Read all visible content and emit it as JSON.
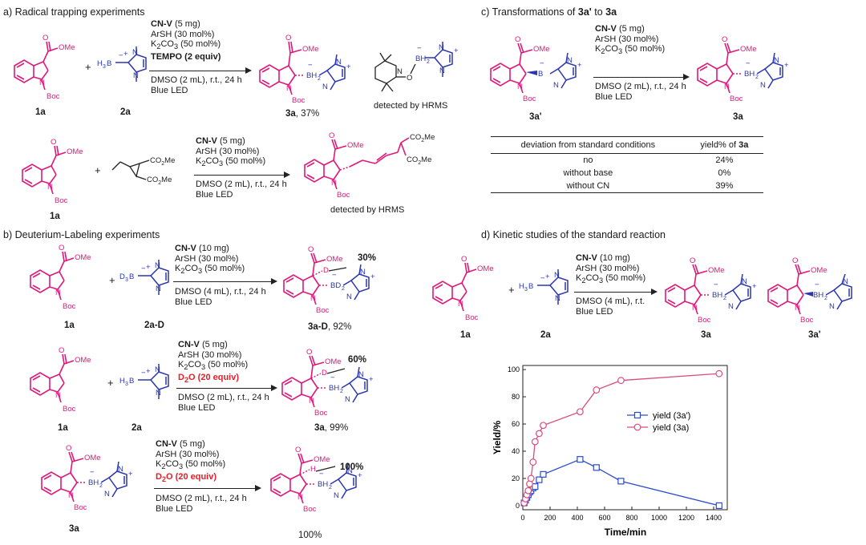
{
  "section_a": {
    "title": "a) Radical trapping experiments",
    "exp1": {
      "cond": [
        "CN-V",
        " (5 mg)",
        "ArSH (30 mol%)",
        "K",
        "2",
        "CO",
        "3",
        " (50 mol%)",
        "TEMPO (2 equiv)",
        "DMSO (2 mL), r.t., 24 h",
        "Blue LED"
      ],
      "sm1": "1a",
      "sm2": "2a",
      "product": "3a",
      "product_yield": ", 37%",
      "adduct_note": "detected by HRMS"
    },
    "exp2": {
      "cond": [
        "CN-V",
        " (5 mg)",
        "ArSH (30 mol%)",
        "K",
        "2",
        "CO",
        "3",
        " (50 mol%)",
        "DMSO (2 mL), r.t., 24 h",
        "Blue LED"
      ],
      "sm1": "1a",
      "product_note": "detected by HRMS",
      "ester_top": "CO",
      "ester_top_sub": "2",
      "ester_top_me": "Me"
    }
  },
  "section_b": {
    "title": "b) Deuterium-Labeling experiments",
    "exp1": {
      "cond": [
        "CN-V",
        " (10 mg)",
        "ArSH (30 mol%)",
        "K",
        "2",
        "CO",
        "3",
        " (50 mol%)",
        "DMSO (4 mL), r.t., 24 h",
        "Blue LED"
      ],
      "sm1": "1a",
      "sm2": "2a-D",
      "product": "3a-D",
      "product_yield": ", 92%",
      "d_pct": "30%"
    },
    "exp2": {
      "cond": [
        "CN-V",
        " (5 mg)",
        "ArSH (30 mol%)",
        "K",
        "2",
        "CO",
        "3",
        " (50 mol%)",
        "D",
        "2",
        "O (20 equiv)",
        "DMSO (2 mL), r.t., 24 h",
        "Blue LED"
      ],
      "sm1": "1a",
      "sm2": "2a",
      "product": "3a",
      "product_yield": ", 99%",
      "d_pct": "60%"
    },
    "exp3": {
      "cond": [
        "CN-V",
        " (5 mg)",
        "ArSH (30 mol%)",
        "K",
        "2",
        "CO",
        "3",
        " (50 mol%)",
        "D",
        "2",
        "O (20 equiv)",
        "DMSO (2 mL), r.t., 24 h",
        "Blue LED"
      ],
      "sm1": "3a",
      "product_yield": "100%",
      "d_pct": "100%"
    }
  },
  "section_c": {
    "title_pre": "c) Transformations of ",
    "title_b1": "3a'",
    "title_mid": " to ",
    "title_b2": "3a",
    "cond": [
      "CN-V",
      " (5 mg)",
      "ArSH (30 mol%)",
      "K",
      "2",
      "CO",
      "3",
      " (50 mol%)",
      "DMSO (2 mL), r.t., 24 h",
      "Blue LED"
    ],
    "sm": "3a'",
    "product": "3a",
    "table": {
      "col1": "deviation from standard conditions",
      "col2_pre": "yield% of ",
      "col2_b": "3a",
      "rows": [
        {
          "dev": "no",
          "yield": "24%"
        },
        {
          "dev": "without base",
          "yield": "0%"
        },
        {
          "dev": "without CN",
          "yield": "39%"
        }
      ]
    }
  },
  "section_d": {
    "title": "d) Kinetic studies of the standard reaction",
    "cond": [
      "CN-V",
      " (10 mg)",
      "ArSH (30 mol%)",
      "K",
      "2",
      "CO",
      "3",
      " (50 mol%)",
      "DMSO (4 mL), r.t.",
      "Blue LED"
    ],
    "sm1": "1a",
    "sm2": "2a",
    "product1": "3a",
    "product2": "3a'"
  },
  "atoms": {
    "ome": "OMe",
    "o": "O",
    "n": "N",
    "boc": "Boc",
    "bh2": "BH",
    "bh2_sub": "2",
    "h3b": "H",
    "h3b_sub": "3",
    "h3b_b": "B",
    "d3b": "D",
    "d3b_sub": "3",
    "d3b_b": "B",
    "bd2": "BD",
    "bd2_sub": "2",
    "plus": "+",
    "minus": "−",
    "d": "D",
    "h": "H",
    "b": "B"
  },
  "colors": {
    "indoline": "#e0197a",
    "nhc": "#2b36b0",
    "red_text": "#e0202a",
    "series_3a": "#d94c7f",
    "series_3a_prime": "#2b4bd0"
  },
  "chart_data": {
    "type": "line",
    "xlabel": "Time/min",
    "ylabel": "Yield/%",
    "xlim": [
      0,
      1500
    ],
    "ylim": [
      -3,
      103
    ],
    "xticks": [
      0,
      200,
      400,
      600,
      800,
      1000,
      1200,
      1400
    ],
    "yticks": [
      0,
      20,
      40,
      60,
      80,
      100
    ],
    "grid": false,
    "legend": "center-right",
    "series": [
      {
        "name": "yield (3a')",
        "marker": "square",
        "color": "#2b4bd0",
        "x": [
          10,
          20,
          30,
          40,
          50,
          60,
          75,
          90,
          120,
          150,
          420,
          540,
          720,
          1440
        ],
        "y": [
          2,
          4,
          6,
          8,
          10,
          11,
          13,
          14,
          19,
          23,
          34,
          28,
          18,
          0
        ]
      },
      {
        "name": "yield (3a)",
        "marker": "circle",
        "color": "#d94c7f",
        "x": [
          10,
          20,
          30,
          40,
          50,
          60,
          75,
          90,
          120,
          150,
          420,
          540,
          720,
          1440
        ],
        "y": [
          2,
          5,
          8,
          11,
          16,
          20,
          32,
          47,
          53,
          59,
          69,
          85,
          92,
          97
        ]
      }
    ]
  }
}
